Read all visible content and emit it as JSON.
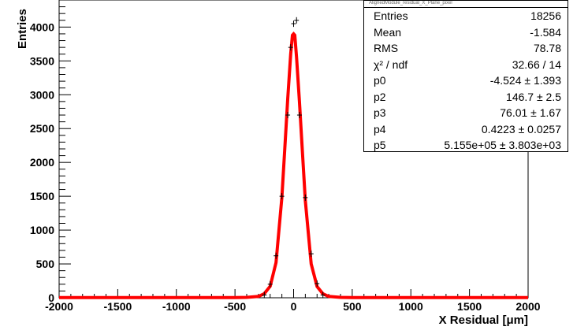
{
  "chart_data": {
    "type": "line",
    "title": "",
    "xlabel": "X Residual [μm]",
    "ylabel": "Entries",
    "xlim": [
      -2000,
      2000
    ],
    "ylim": [
      0,
      4400
    ],
    "x_ticks": [
      "-2000",
      "-1500",
      "-1000",
      "-500",
      "0",
      "500",
      "1000",
      "1500",
      "2000"
    ],
    "y_ticks": [
      "0",
      "500",
      "1000",
      "1500",
      "2000",
      "2500",
      "3000",
      "3500",
      "4000"
    ],
    "grid": false,
    "legend": "none",
    "series": [
      {
        "kind": "histogram-points",
        "color": "#000000",
        "x": [
          -250,
          -200,
          -150,
          -100,
          -50,
          -25,
          0,
          25,
          50,
          100,
          150,
          200,
          250
        ],
        "y": [
          40,
          200,
          620,
          1500,
          2700,
          3700,
          4050,
          4100,
          2700,
          1480,
          650,
          210,
          40
        ]
      },
      {
        "kind": "fit-curve",
        "color": "#ff0000",
        "x": [
          -2000,
          -500,
          -400,
          -300,
          -250,
          -200,
          -150,
          -100,
          -75,
          -50,
          -25,
          -10,
          0,
          10,
          25,
          50,
          75,
          100,
          150,
          200,
          250,
          300,
          400,
          500,
          2000
        ],
        "y": [
          2,
          4,
          6,
          20,
          60,
          170,
          520,
          1480,
          2200,
          2950,
          3600,
          3880,
          3900,
          3880,
          3560,
          2900,
          2150,
          1430,
          500,
          165,
          58,
          20,
          6,
          4,
          2
        ]
      }
    ]
  },
  "stats": {
    "title": "AlignedModule_residual_X_Plane_pixel",
    "rows": [
      {
        "label": "Entries",
        "value": "18256"
      },
      {
        "label": "Mean",
        "value": "-1.584"
      },
      {
        "label": "RMS",
        "value": "78.78"
      },
      {
        "label": "χ² / ndf",
        "value": "32.66 / 14"
      },
      {
        "label": "p0",
        "value": "-4.524 ± 1.393"
      },
      {
        "label": "p2",
        "value": "146.7 ± 2.5"
      },
      {
        "label": "p3",
        "value": "76.01 ± 1.67"
      },
      {
        "label": "p4",
        "value": "0.4223 ± 0.0257"
      },
      {
        "label": "p5",
        "value": "5.155e+05 ± 3.803e+03"
      }
    ]
  }
}
